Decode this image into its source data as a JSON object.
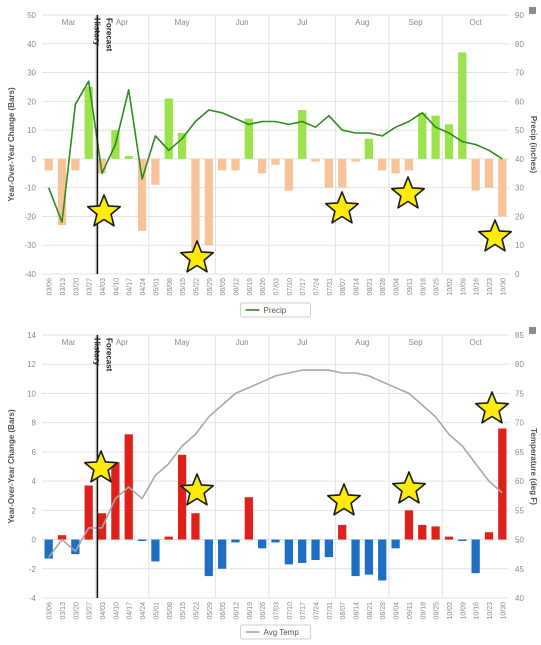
{
  "chart_data": [
    {
      "type": "bar",
      "title": "",
      "ylabel": "Year-Over-Year Change (Bars)",
      "y2label": "Precip (inches)",
      "ylim": [
        -40,
        50
      ],
      "y2lim": [
        0,
        90
      ],
      "yticks": [
        -40,
        -30,
        -20,
        -10,
        0,
        10,
        20,
        30,
        40,
        50
      ],
      "y2ticks": [
        0,
        10,
        20,
        30,
        40,
        50,
        60,
        70,
        80,
        90
      ],
      "months": [
        "Mar",
        "Apr",
        "May",
        "Jun",
        "Jul",
        "Aug",
        "Sep",
        "Oct"
      ],
      "categories": [
        "03/06",
        "03/13",
        "03/20",
        "03/27",
        "04/03",
        "04/10",
        "04/17",
        "04/24",
        "05/01",
        "05/08",
        "05/15",
        "05/22",
        "05/29",
        "06/05",
        "06/12",
        "06/19",
        "06/26",
        "07/03",
        "07/10",
        "07/17",
        "07/24",
        "07/31",
        "08/07",
        "08/14",
        "08/21",
        "08/28",
        "09/04",
        "09/11",
        "09/18",
        "09/25",
        "10/02",
        "10/09",
        "10/16",
        "10/23",
        "10/30"
      ],
      "bar_values": [
        -4,
        -23,
        -4,
        25,
        -5,
        10,
        1,
        -25,
        -9,
        21,
        9,
        -33,
        -30,
        -4,
        -4,
        14,
        -5,
        -2,
        -11,
        17,
        -1,
        -10,
        -10,
        -1,
        7,
        -4,
        -5,
        -4,
        16,
        15,
        12,
        37,
        -11,
        -10,
        -20
      ],
      "series": [
        {
          "name": "Precip",
          "color": "#2e8b1f",
          "values": [
            30,
            18,
            59,
            67,
            35,
            45,
            64,
            33,
            48,
            43,
            47,
            53,
            57,
            56,
            54,
            52,
            53,
            53,
            52,
            53,
            51,
            55,
            50,
            49,
            49,
            48,
            51,
            53,
            56,
            51,
            49,
            46,
            45,
            43,
            40
          ]
        }
      ],
      "bar_colors": {
        "positive": "#9be24c",
        "negative": "#f7c49a"
      },
      "history_marker": {
        "index": 4,
        "labels": [
          "History",
          "Forecast"
        ]
      },
      "legend": {
        "position": "bottom",
        "label": "Precip"
      },
      "star_indices": [
        4,
        11,
        21,
        26,
        33
      ]
    },
    {
      "type": "bar",
      "title": "",
      "ylabel": "Year-Over-Year Change (Bars)",
      "y2label": "Temperature (deg F)",
      "ylim": [
        -4,
        14
      ],
      "y2lim": [
        40,
        85
      ],
      "yticks": [
        -4,
        -2,
        0,
        2,
        4,
        6,
        8,
        10,
        12,
        14
      ],
      "y2ticks": [
        40,
        45,
        50,
        55,
        60,
        65,
        70,
        75,
        80,
        85
      ],
      "months": [
        "Mar",
        "Apr",
        "May",
        "Jun",
        "Jul",
        "Aug",
        "Sep",
        "Oct"
      ],
      "categories": [
        "03/06",
        "03/13",
        "03/20",
        "03/27",
        "04/03",
        "04/10",
        "04/17",
        "04/24",
        "05/01",
        "05/08",
        "05/15",
        "05/22",
        "05/29",
        "06/05",
        "06/12",
        "06/19",
        "06/26",
        "07/03",
        "07/10",
        "07/17",
        "07/24",
        "07/31",
        "08/07",
        "08/14",
        "08/21",
        "08/28",
        "09/04",
        "09/11",
        "09/18",
        "09/25",
        "10/02",
        "10/09",
        "10/16",
        "10/23",
        "10/30"
      ],
      "bar_values": [
        -1.3,
        0.3,
        -1.0,
        3.7,
        1.8,
        5.3,
        7.2,
        -0.1,
        -1.5,
        0.2,
        5.8,
        1.8,
        -2.5,
        -2.0,
        -0.2,
        2.9,
        -0.6,
        -0.2,
        -1.7,
        -1.6,
        -1.4,
        -1.2,
        1.0,
        -2.5,
        -2.4,
        -2.8,
        -0.6,
        2.0,
        1.0,
        0.9,
        0.2,
        -0.1,
        -2.3,
        0.5,
        7.6
      ],
      "series": [
        {
          "name": "Avg Temp",
          "color": "#a8a8a8",
          "values": [
            47,
            50,
            48,
            52,
            52,
            57,
            59,
            57,
            61,
            63,
            66,
            68,
            71,
            73,
            75,
            76,
            77,
            78,
            78.5,
            79,
            79,
            79,
            78.5,
            78.5,
            78,
            77,
            76,
            75,
            73,
            71,
            68,
            66,
            63,
            60,
            58
          ]
        }
      ],
      "bar_colors": {
        "positive": "#e0201a",
        "negative": "#1e6fc4"
      },
      "history_marker": {
        "index": 4,
        "labels": [
          "History",
          "Forecast"
        ]
      },
      "legend": {
        "position": "bottom",
        "label": "Avg Temp"
      },
      "star_indices": [
        5,
        12,
        22,
        27,
        34
      ]
    }
  ],
  "colors": {
    "star_fill": "#ffeb0a",
    "star_stroke": "#1a1a1a",
    "grid": "#e3e3e3",
    "axis_text": "#8a8a8a"
  }
}
